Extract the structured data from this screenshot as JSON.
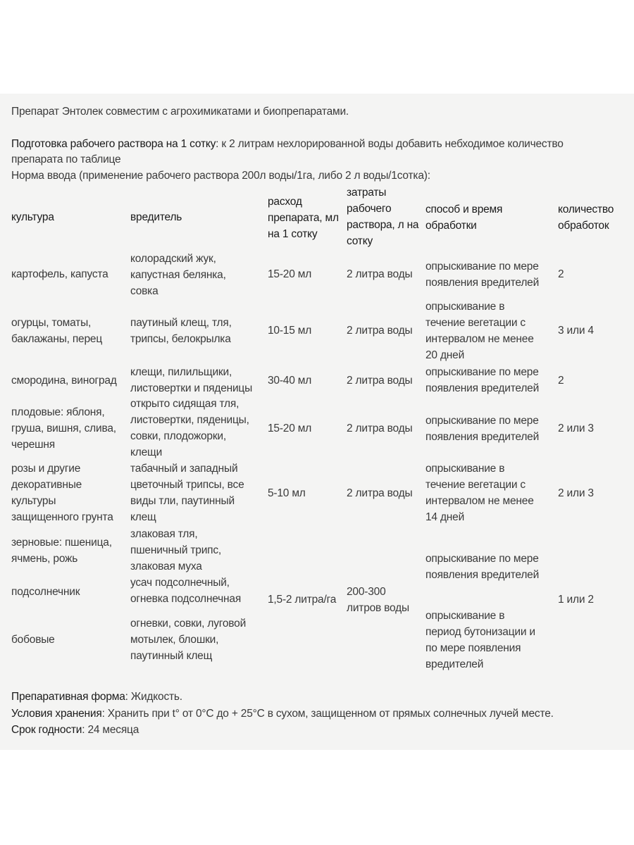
{
  "intro": "Препарат Энтолек совместим с агрохимикатами и биопрепаратами.",
  "preparation": {
    "label": "Подготовка рабочего раствора на 1 сотку",
    "text": ": к 2 литрам нехлорированной воды добавить небходимое количество",
    "text2": "препарата по таблице"
  },
  "norm": "Норма ввода (применение рабочего раствора 200л воды/1га, либо 2 л воды/1сотка):",
  "table": {
    "headers": [
      "культура",
      "вредитель",
      "расход\nпрепарата, мл\nна 1 сотку",
      "затраты\nрабочего\nраствора, л на\nсотку",
      "способ и время\nобработки",
      "количество\nобработок"
    ],
    "rows": [
      [
        "картофель, капуста",
        "колорадский жук,\nкапустная белянка,\nсовка",
        "15-20 мл",
        "2 литра воды",
        "опрыскивание по мере\nпоявления вредителей",
        "2"
      ],
      [
        "огурцы, томаты,\nбаклажаны, перец",
        "паутиный клещ, тля,\nтрипсы, белокрылка",
        "10-15 мл",
        "2 литра воды",
        "опрыскивание в\nтечение вегетации с\nинтервалом не менее\n20 дней",
        "3 или 4"
      ],
      [
        "смородина, виноград",
        "клещи, пилильщики,\nлистовертки и пяденицы",
        "30-40 мл",
        "2 литра воды",
        "опрыскивание по мере\nпоявления вредителей",
        "2"
      ],
      [
        "плодовые: яблоня,\nгруша, вишня, слива,\nчерешня",
        "открыто сидящая тля,\nлистовертки, пяденицы,\nсовки, плодожорки,\nклещи",
        "15-20 мл",
        "2 литра воды",
        "опрыскивание по мере\nпоявления вредителей",
        "2 или 3"
      ],
      [
        "розы и другие\nдекоративные\nкультуры\nзащищенного грунта",
        "табачный и западный\nцветочный трипсы, все\nвиды тли, паутинный\nклещ",
        "5-10 мл",
        "2 литра воды",
        "опрыскивание в\nтечение вегетации с\nинтервалом не менее\n14 дней",
        "2 или 3"
      ],
      [
        "зерновые: пшеница,\nячмень, рожь",
        "злаковая тля,\nпшеничный трипс,\nзлаковая муха",
        "",
        "",
        "опрыскивание по мере\nпоявления вредителей",
        ""
      ],
      [
        "подсолнечник",
        "усач подсолнечный,\nогневка подсолнечная",
        "1,5-2 литра/га",
        "200-300\nлитров воды",
        "",
        "1 или 2"
      ],
      [
        "бобовые",
        "огневки, совки, луговой\nмотылек, блошки,\nпаутинный клещ",
        "",
        "",
        "опрыскивание в\nпериод бутонизации и\nпо мере появления\nвредителей",
        ""
      ]
    ]
  },
  "footer": {
    "form_label": "Препаративная форма",
    "form_value": ": Жидкость.",
    "storage_label": "Условия хранения",
    "storage_value": ": Хранить при t° от 0°C до + 25°C в сухом, защищенном от прямых солнечных лучей месте.",
    "shelf_label": "Срок годности",
    "shelf_value": ": 24 месяца"
  }
}
